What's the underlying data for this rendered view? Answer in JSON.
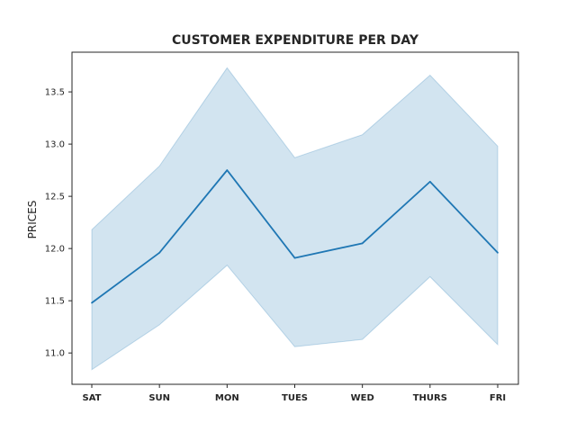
{
  "chart_data": {
    "type": "line",
    "title": "CUSTOMER EXPENDITURE PER DAY",
    "xlabel": "",
    "ylabel": "PRICES",
    "categories": [
      "SAT",
      "SUN",
      "MON",
      "TUES",
      "WED",
      "THURS",
      "FRI"
    ],
    "series": [
      {
        "values": [
          11.48,
          11.96,
          12.75,
          11.91,
          12.05,
          12.64,
          11.96
        ],
        "ci_lower": [
          10.84,
          11.27,
          11.84,
          11.06,
          11.13,
          11.73,
          11.08
        ],
        "ci_upper": [
          12.18,
          12.79,
          13.73,
          12.87,
          13.09,
          13.66,
          12.98
        ],
        "color": "#1f77b4"
      }
    ],
    "yticks": [
      "11.0",
      "11.5",
      "12.0",
      "12.5",
      "13.0",
      "13.5"
    ],
    "ylim": [
      10.7,
      13.88
    ],
    "grid": false,
    "legend": "none",
    "band_color": "#1f77b4",
    "band_opacity": 0.2
  }
}
